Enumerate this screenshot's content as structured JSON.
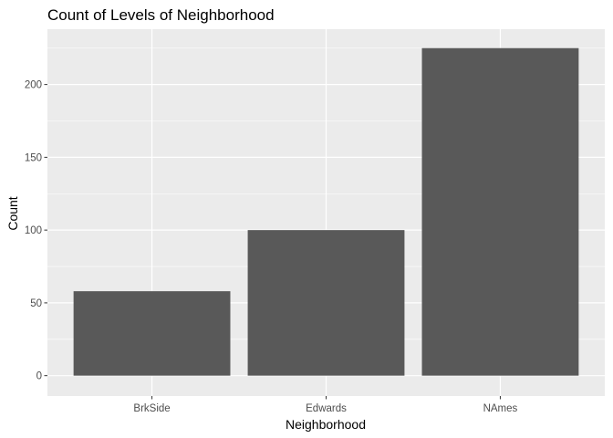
{
  "chart_data": {
    "type": "bar",
    "title": "Count of Levels of Neighborhood",
    "xlabel": "Neighborhood",
    "ylabel": "Count",
    "categories": [
      "BrkSide",
      "Edwards",
      "NAmes"
    ],
    "values": [
      58,
      100,
      225
    ],
    "ylim": [
      -14,
      238
    ],
    "yticks": [
      0,
      50,
      100,
      150,
      200
    ],
    "grid": true,
    "legend": "none",
    "colors": {
      "bar": "#595959",
      "panel": "#ebebeb",
      "grid": "#ffffff",
      "tick": "#333333"
    }
  }
}
